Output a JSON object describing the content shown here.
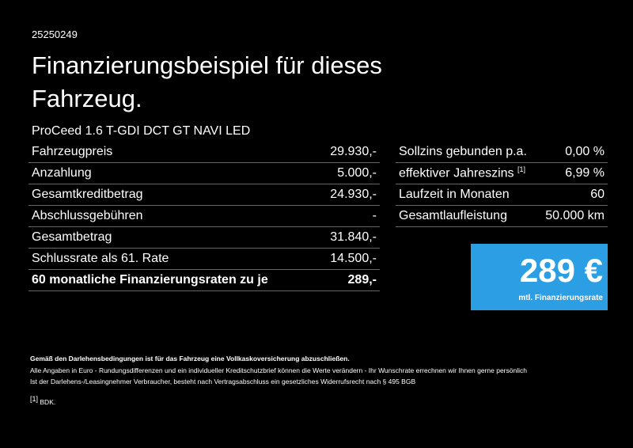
{
  "header": {
    "id": "25250249",
    "title": "Finanzierungsbeispiel für dieses Fahrzeug.",
    "subtitle": "ProCeed 1.6 T-GDI DCT GT NAVI LED"
  },
  "left_table": {
    "rows": [
      [
        "Fahrzeugpreis",
        "29.930,-"
      ],
      [
        "Anzahlung",
        "5.000,-"
      ],
      [
        "Gesamtkreditbetrag",
        "24.930,-"
      ],
      [
        "Abschlussgebühren",
        "-"
      ],
      [
        "Gesamtbetrag",
        "31.840,-"
      ],
      [
        "Schlussrate als 61. Rate",
        "14.500,-"
      ],
      [
        "60 monatliche Finanzierungsraten zu je",
        "289,-"
      ]
    ]
  },
  "right_table": {
    "rows": [
      {
        "label": "Sollzins gebunden p.a.",
        "value": "0,00 %"
      },
      {
        "label": "effektiver Jahreszins",
        "note": "[1]",
        "value": "6,99 %"
      },
      {
        "label": "Laufzeit in Monaten",
        "value": "60"
      },
      {
        "label": "Gesamtlaufleistung",
        "value": "50.000 km"
      }
    ]
  },
  "rate_box": {
    "amount": "289 €",
    "caption": "mtl. Finanzierungsrate"
  },
  "footer": {
    "bold_note": "Gemäß den Darlehensbedingungen ist für das Fahrzeug eine Vollkaskoversicherung abzuschließen.",
    "lines": [
      "Alle Angaben in Euro - Rundungsdifferenzen und ein individueller Kreditschutzbrief können die Werte verändern - Ihr Wunschrate errechnen wir Ihnen gerne persönlich",
      "Ist der Darlehens-/Leasingnehmer Verbraucher, besteht nach Vertragsabschluss ein gesetzliches Widerrufsrecht nach § 495 BGB"
    ],
    "footnote": {
      "marker": "[1]",
      "text": "BDK."
    }
  }
}
